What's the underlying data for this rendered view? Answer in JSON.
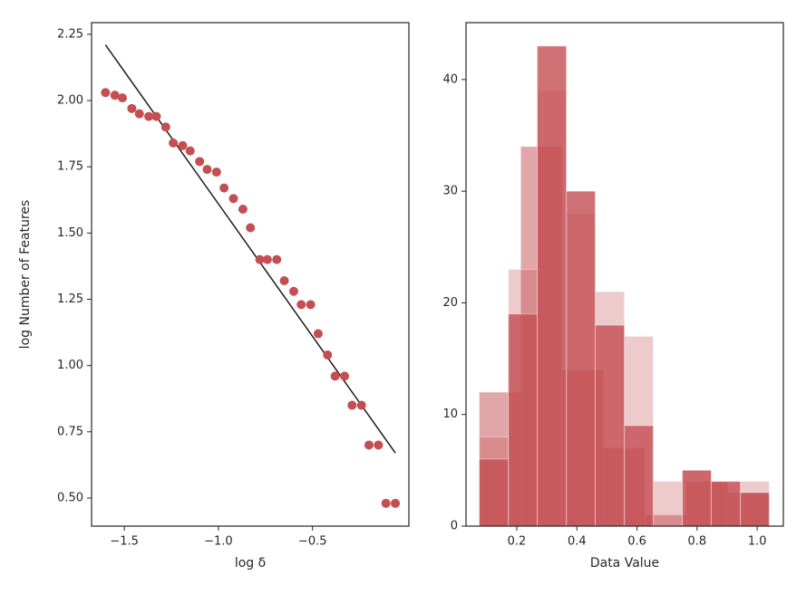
{
  "chart_data": [
    {
      "type": "scatter",
      "x_label": "log δ",
      "y_label": "log Number of Features",
      "x": [
        -1.6,
        -1.55,
        -1.51,
        -1.46,
        -1.42,
        -1.37,
        -1.33,
        -1.28,
        -1.24,
        -1.19,
        -1.15,
        -1.1,
        -1.06,
        -1.01,
        -0.97,
        -0.92,
        -0.87,
        -0.83,
        -0.78,
        -0.74,
        -0.69,
        -0.65,
        -0.6,
        -0.56,
        -0.51,
        -0.47,
        -0.42,
        -0.38,
        -0.33,
        -0.29,
        -0.24,
        -0.2,
        -0.15,
        -0.11,
        -0.06
      ],
      "values": [
        2.03,
        2.02,
        2.01,
        1.97,
        1.95,
        1.94,
        1.94,
        1.9,
        1.84,
        1.83,
        1.81,
        1.77,
        1.74,
        1.73,
        1.67,
        1.63,
        1.59,
        1.52,
        1.4,
        1.4,
        1.4,
        1.32,
        1.28,
        1.23,
        1.23,
        1.12,
        1.04,
        0.96,
        0.96,
        0.85,
        0.85,
        0.7,
        0.7,
        0.48,
        0.48
      ],
      "color": "#c44e52",
      "fit": {
        "x": [
          -1.6,
          -0.06
        ],
        "values": [
          2.21,
          0.67
        ],
        "color": "#1a1a1a"
      },
      "xlim": [
        -1.674,
        0.012
      ],
      "ylim": [
        0.394,
        2.294
      ],
      "xticks": [
        {
          "value": -1.5,
          "label": "−1.5"
        },
        {
          "value": -1.0,
          "label": "−1.0"
        },
        {
          "value": -0.5,
          "label": "−0.5"
        }
      ],
      "yticks": [
        {
          "value": 0.5,
          "label": "0.50"
        },
        {
          "value": 0.75,
          "label": "0.75"
        },
        {
          "value": 1.0,
          "label": "1.00"
        },
        {
          "value": 1.25,
          "label": "1.25"
        },
        {
          "value": 1.5,
          "label": "1.50"
        },
        {
          "value": 1.75,
          "label": "1.75"
        },
        {
          "value": 2.0,
          "label": "2.00"
        },
        {
          "value": 2.25,
          "label": "2.25"
        }
      ]
    },
    {
      "type": "histogram",
      "x_label": "Data Value",
      "histograms": [
        {
          "bins": [
            0.075,
            0.213,
            0.351,
            0.489,
            0.627,
            0.764,
            0.902,
            1.04
          ],
          "counts": [
            12,
            34,
            14,
            7,
            1,
            4,
            3
          ],
          "color": "#c44e52",
          "alpha": 0.5
        },
        {
          "bins": [
            0.075,
            0.172,
            0.268,
            0.365,
            0.461,
            0.558,
            0.654,
            0.751,
            0.847,
            0.944,
            1.04
          ],
          "counts": [
            8,
            23,
            39,
            28,
            21,
            17,
            4,
            5,
            4,
            4
          ],
          "color": "#c44e52",
          "alpha": 0.3
        },
        {
          "bins": [
            0.075,
            0.172,
            0.268,
            0.365,
            0.461,
            0.558,
            0.654,
            0.751,
            0.847,
            0.944,
            1.04
          ],
          "counts": [
            6,
            19,
            43,
            30,
            18,
            9,
            0,
            5,
            4,
            3
          ],
          "color": "#c44e52",
          "alpha": 0.8
        }
      ],
      "xlim": [
        0.031,
        1.087
      ],
      "ylim": [
        0,
        45.1
      ],
      "xticks": [
        0.2,
        0.4,
        0.6,
        0.8,
        {
          "value": 1.0,
          "label": "1.0"
        }
      ],
      "yticks": [
        0,
        10,
        20,
        30,
        40
      ]
    }
  ]
}
